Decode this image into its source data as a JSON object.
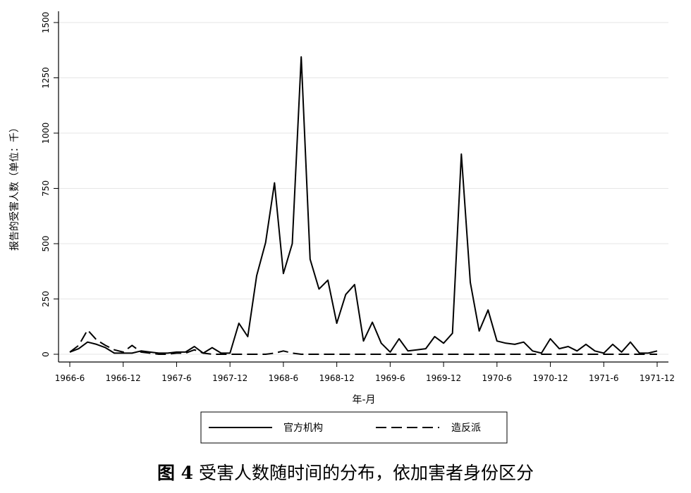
{
  "caption": {
    "figure_number": "图 4",
    "text": "受害人数随时间的分布，依加害者身份区分"
  },
  "chart_data": {
    "type": "line",
    "ylabel": "报告的受害人数（单位：千）",
    "xlabel": "年-月",
    "ylim": [
      0,
      1500
    ],
    "yticks": [
      0,
      250,
      500,
      750,
      1000,
      1250,
      1500
    ],
    "ytick_labels": [
      "0",
      "250",
      "500",
      "750",
      "1000",
      "1250",
      "1500"
    ],
    "xlim": [
      "1966-06",
      "1971-12"
    ],
    "xticks": [
      "1966-06",
      "1966-12",
      "1967-06",
      "1967-12",
      "1968-06",
      "1968-12",
      "1969-06",
      "1969-12",
      "1970-06",
      "1970-12",
      "1971-06",
      "1971-12"
    ],
    "xtick_labels": [
      "1966-6",
      "1966-12",
      "1967-6",
      "1967-12",
      "1968-6",
      "1968-12",
      "1969-6",
      "1969-12",
      "1970-6",
      "1970-12",
      "1971-6",
      "1971-12"
    ],
    "grid": "horizontal",
    "legend_position": "bottom",
    "series": [
      {
        "name": "官方机构",
        "style": "solid",
        "points": [
          [
            "1966-06",
            10
          ],
          [
            "1966-07",
            25
          ],
          [
            "1966-08",
            55
          ],
          [
            "1966-09",
            45
          ],
          [
            "1966-10",
            30
          ],
          [
            "1966-11",
            5
          ],
          [
            "1966-12",
            5
          ],
          [
            "1967-01",
            5
          ],
          [
            "1967-02",
            15
          ],
          [
            "1967-03",
            10
          ],
          [
            "1967-04",
            5
          ],
          [
            "1967-05",
            5
          ],
          [
            "1967-06",
            10
          ],
          [
            "1967-07",
            10
          ],
          [
            "1967-08",
            35
          ],
          [
            "1967-09",
            5
          ],
          [
            "1967-10",
            30
          ],
          [
            "1967-11",
            5
          ],
          [
            "1967-12",
            5
          ],
          [
            "1968-01",
            140
          ],
          [
            "1968-02",
            80
          ],
          [
            "1968-03",
            355
          ],
          [
            "1968-04",
            505
          ],
          [
            "1968-05",
            775
          ],
          [
            "1968-06",
            365
          ],
          [
            "1968-07",
            500
          ],
          [
            "1968-08",
            1345
          ],
          [
            "1968-09",
            430
          ],
          [
            "1968-10",
            295
          ],
          [
            "1968-11",
            335
          ],
          [
            "1968-12",
            140
          ],
          [
            "1969-01",
            270
          ],
          [
            "1969-02",
            315
          ],
          [
            "1969-03",
            60
          ],
          [
            "1969-04",
            145
          ],
          [
            "1969-05",
            50
          ],
          [
            "1969-06",
            10
          ],
          [
            "1969-07",
            70
          ],
          [
            "1969-08",
            15
          ],
          [
            "1969-09",
            20
          ],
          [
            "1969-10",
            25
          ],
          [
            "1969-11",
            80
          ],
          [
            "1969-12",
            50
          ],
          [
            "1970-01",
            95
          ],
          [
            "1970-02",
            905
          ],
          [
            "1970-03",
            325
          ],
          [
            "1970-04",
            105
          ],
          [
            "1970-05",
            200
          ],
          [
            "1970-06",
            60
          ],
          [
            "1970-07",
            50
          ],
          [
            "1970-08",
            45
          ],
          [
            "1970-09",
            55
          ],
          [
            "1970-10",
            15
          ],
          [
            "1970-11",
            5
          ],
          [
            "1970-12",
            70
          ],
          [
            "1971-01",
            25
          ],
          [
            "1971-02",
            35
          ],
          [
            "1971-03",
            15
          ],
          [
            "1971-04",
            45
          ],
          [
            "1971-05",
            15
          ],
          [
            "1971-06",
            5
          ],
          [
            "1971-07",
            45
          ],
          [
            "1971-08",
            10
          ],
          [
            "1971-09",
            55
          ],
          [
            "1971-10",
            5
          ],
          [
            "1971-11",
            5
          ],
          [
            "1971-12",
            15
          ]
        ]
      },
      {
        "name": "造反派",
        "style": "dashed",
        "points": [
          [
            "1966-06",
            10
          ],
          [
            "1966-07",
            40
          ],
          [
            "1966-08",
            110
          ],
          [
            "1966-09",
            65
          ],
          [
            "1966-10",
            40
          ],
          [
            "1966-11",
            20
          ],
          [
            "1966-12",
            10
          ],
          [
            "1967-01",
            40
          ],
          [
            "1967-02",
            10
          ],
          [
            "1967-03",
            5
          ],
          [
            "1967-04",
            0
          ],
          [
            "1967-05",
            0
          ],
          [
            "1967-06",
            5
          ],
          [
            "1967-07",
            5
          ],
          [
            "1967-08",
            20
          ],
          [
            "1967-09",
            5
          ],
          [
            "1967-10",
            0
          ],
          [
            "1967-11",
            0
          ],
          [
            "1967-12",
            0
          ],
          [
            "1968-01",
            0
          ],
          [
            "1968-02",
            0
          ],
          [
            "1968-03",
            0
          ],
          [
            "1968-04",
            0
          ],
          [
            "1968-05",
            5
          ],
          [
            "1968-06",
            15
          ],
          [
            "1968-07",
            5
          ],
          [
            "1968-08",
            0
          ],
          [
            "1968-09",
            0
          ],
          [
            "1968-10",
            0
          ],
          [
            "1968-11",
            0
          ],
          [
            "1968-12",
            0
          ],
          [
            "1969-01",
            0
          ],
          [
            "1969-02",
            0
          ],
          [
            "1969-03",
            0
          ],
          [
            "1969-04",
            0
          ],
          [
            "1969-05",
            0
          ],
          [
            "1969-06",
            0
          ],
          [
            "1969-07",
            0
          ],
          [
            "1969-08",
            0
          ],
          [
            "1969-09",
            0
          ],
          [
            "1969-10",
            0
          ],
          [
            "1969-11",
            0
          ],
          [
            "1969-12",
            0
          ],
          [
            "1970-01",
            0
          ],
          [
            "1970-02",
            0
          ],
          [
            "1970-03",
            0
          ],
          [
            "1970-04",
            0
          ],
          [
            "1970-05",
            0
          ],
          [
            "1970-06",
            0
          ],
          [
            "1970-07",
            0
          ],
          [
            "1970-08",
            0
          ],
          [
            "1970-09",
            0
          ],
          [
            "1970-10",
            0
          ],
          [
            "1970-11",
            0
          ],
          [
            "1970-12",
            0
          ],
          [
            "1971-01",
            0
          ],
          [
            "1971-02",
            0
          ],
          [
            "1971-03",
            0
          ],
          [
            "1971-04",
            0
          ],
          [
            "1971-05",
            0
          ],
          [
            "1971-06",
            0
          ],
          [
            "1971-07",
            0
          ],
          [
            "1971-08",
            0
          ],
          [
            "1971-09",
            0
          ],
          [
            "1971-10",
            0
          ],
          [
            "1971-11",
            0
          ],
          [
            "1971-12",
            0
          ]
        ]
      }
    ]
  }
}
